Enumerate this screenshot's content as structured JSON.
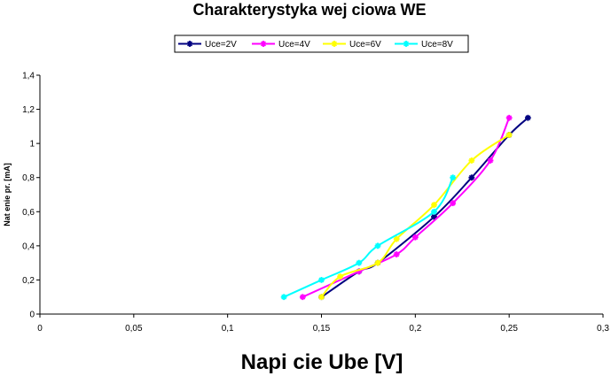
{
  "chart_data": {
    "type": "line",
    "title": "Charakterystyka wej  ciowa WE",
    "xlabel": "Napi  cie Ube [V]",
    "ylabel": "Nat  enie pr. [mA]",
    "xlim": [
      0,
      0.3
    ],
    "ylim": [
      0,
      1.4
    ],
    "xticks": [
      0,
      0.05,
      0.1,
      0.15,
      0.2,
      0.25,
      0.3
    ],
    "xtick_labels": [
      "0",
      "0,05",
      "0,1",
      "0,15",
      "0,2",
      "0,25",
      "0,3"
    ],
    "yticks": [
      0,
      0.2,
      0.4,
      0.6,
      0.8,
      1.0,
      1.2,
      1.4
    ],
    "ytick_labels": [
      "0",
      "0,2",
      "0,4",
      "0,6",
      "0,8",
      "1",
      "1,2",
      "1,4"
    ],
    "grid": false,
    "legend_position": "top",
    "series": [
      {
        "name": "Uce=2V",
        "color": "#000080",
        "x": [
          0.15,
          0.17,
          0.18,
          0.21,
          0.23,
          0.25,
          0.26
        ],
        "y": [
          0.1,
          0.25,
          0.3,
          0.57,
          0.8,
          1.05,
          1.15
        ]
      },
      {
        "name": "Uce=4V",
        "color": "#FF00FF",
        "x": [
          0.14,
          0.17,
          0.19,
          0.2,
          0.22,
          0.24,
          0.25
        ],
        "y": [
          0.1,
          0.25,
          0.35,
          0.45,
          0.65,
          0.9,
          1.15
        ]
      },
      {
        "name": "Uce=6V",
        "color": "#FFFF00",
        "x": [
          0.15,
          0.16,
          0.18,
          0.19,
          0.21,
          0.23,
          0.25
        ],
        "y": [
          0.1,
          0.22,
          0.3,
          0.44,
          0.64,
          0.9,
          1.05
        ]
      },
      {
        "name": "Uce=8V",
        "color": "#00FFFF",
        "x": [
          0.13,
          0.15,
          0.17,
          0.18,
          0.21,
          0.22
        ],
        "y": [
          0.1,
          0.2,
          0.3,
          0.4,
          0.6,
          0.8
        ]
      }
    ]
  }
}
